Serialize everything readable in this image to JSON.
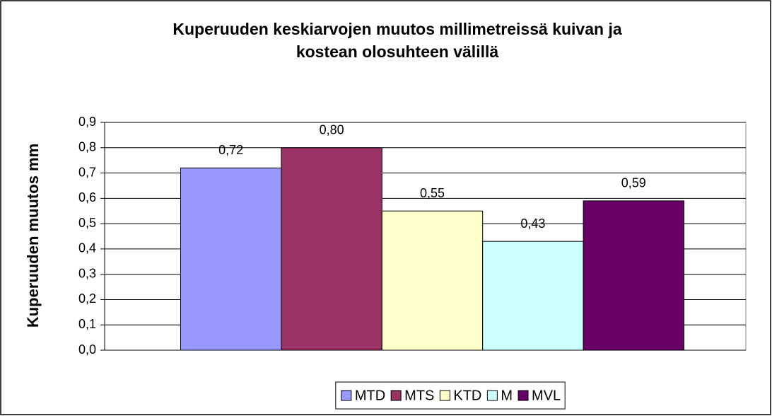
{
  "chart_data": {
    "type": "bar",
    "title": [
      "Kuperuuden keskiarvojen muutos millimetreissä kuivan ja",
      "kostean olosuhteen välillä"
    ],
    "y_label": "Kuperuuden muutos mm",
    "categories": [
      null
    ],
    "series": [
      {
        "name": "MTD",
        "color": "#9999ff",
        "values": [
          0.72
        ],
        "value_labels": [
          "0,72"
        ]
      },
      {
        "name": "MTS",
        "color": "#993366",
        "values": [
          0.8
        ],
        "value_labels": [
          "0,80"
        ]
      },
      {
        "name": "KTD",
        "color": "#ffffcc",
        "values": [
          0.55
        ],
        "value_labels": [
          "0,55"
        ]
      },
      {
        "name": "M",
        "color": "#ccffff",
        "values": [
          0.43
        ],
        "value_labels": [
          "0,43"
        ]
      },
      {
        "name": "MVL",
        "color": "#660066",
        "values": [
          0.59
        ],
        "value_labels": [
          "0,59"
        ]
      }
    ],
    "ylim": [
      0,
      0.9
    ],
    "yticks": [
      {
        "value": 0,
        "label": "0,0"
      },
      {
        "value": 0.1,
        "label": "0,1"
      },
      {
        "value": 0.2,
        "label": "0,2"
      },
      {
        "value": 0.3,
        "label": "0,3"
      },
      {
        "value": 0.4,
        "label": "0,4"
      },
      {
        "value": 0.5,
        "label": "0,5"
      },
      {
        "value": 0.6,
        "label": "0,6"
      },
      {
        "value": 0.7,
        "label": "0,7"
      },
      {
        "value": 0.8,
        "label": "0,8"
      },
      {
        "value": 0.9,
        "label": "0,9"
      }
    ],
    "grid": true,
    "legend": "bottom"
  }
}
